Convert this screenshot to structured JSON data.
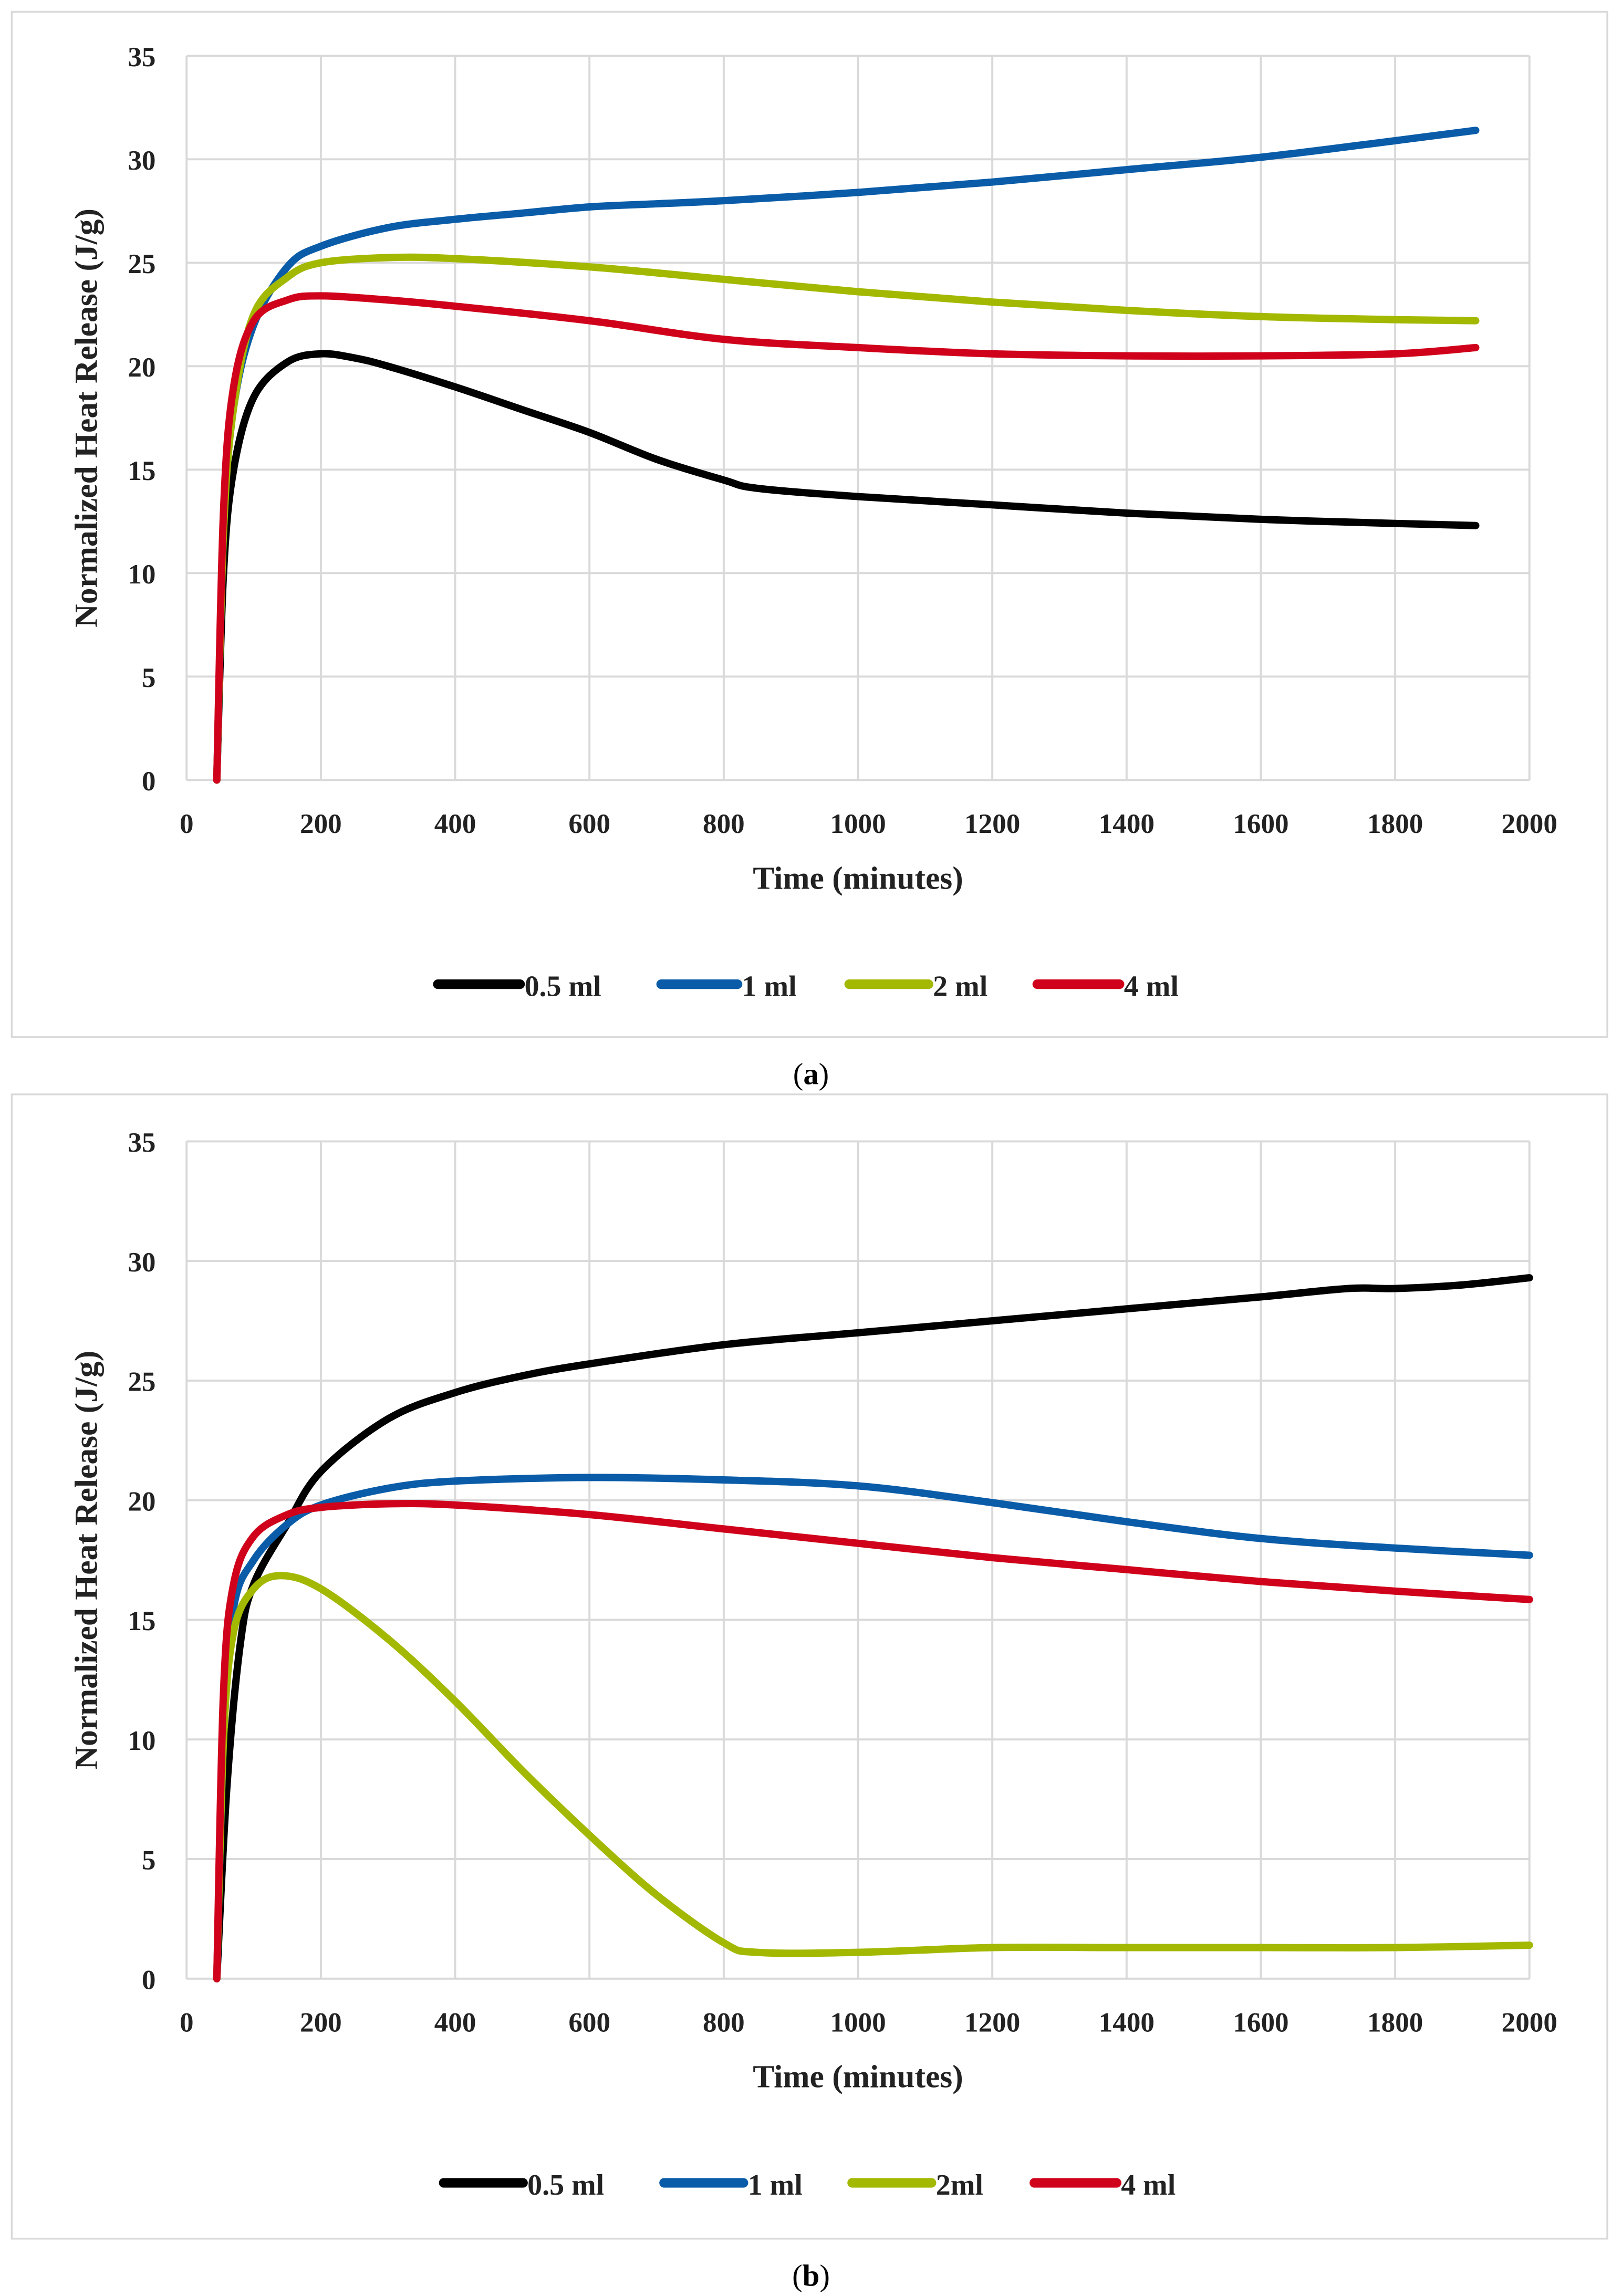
{
  "chart_data": [
    {
      "type": "line",
      "caption": "a",
      "xlabel": "Time (minutes)",
      "ylabel": "Normalized Heat Release (J/g)",
      "xlim": [
        0,
        2000
      ],
      "ylim": [
        0,
        35
      ],
      "xticks": [
        0,
        200,
        400,
        600,
        800,
        1000,
        1200,
        1400,
        1600,
        1800,
        2000
      ],
      "yticks": [
        0,
        5,
        10,
        15,
        20,
        25,
        30,
        35
      ],
      "grid": "vertical and horizontal",
      "legend_position": "bottom",
      "series": [
        {
          "name": "0.5 ml",
          "color": "#000000",
          "points": [
            [
              45,
              0
            ],
            [
              55,
              10
            ],
            [
              70,
              15
            ],
            [
              100,
              18.5
            ],
            [
              150,
              20.2
            ],
            [
              200,
              20.6
            ],
            [
              250,
              20.4
            ],
            [
              300,
              20
            ],
            [
              400,
              19
            ],
            [
              500,
              17.9
            ],
            [
              600,
              16.8
            ],
            [
              700,
              15.5
            ],
            [
              800,
              14.5
            ],
            [
              850,
              14.1
            ],
            [
              1000,
              13.7
            ],
            [
              1200,
              13.3
            ],
            [
              1400,
              12.9
            ],
            [
              1600,
              12.6
            ],
            [
              1800,
              12.4
            ],
            [
              1920,
              12.3
            ]
          ]
        },
        {
          "name": "1 ml",
          "color": "#0a5ca8",
          "points": [
            [
              45,
              0
            ],
            [
              55,
              12
            ],
            [
              70,
              18
            ],
            [
              100,
              22
            ],
            [
              150,
              24.8
            ],
            [
              200,
              25.8
            ],
            [
              300,
              26.7
            ],
            [
              400,
              27.1
            ],
            [
              500,
              27.4
            ],
            [
              600,
              27.7
            ],
            [
              700,
              27.85
            ],
            [
              800,
              28
            ],
            [
              1000,
              28.4
            ],
            [
              1200,
              28.9
            ],
            [
              1400,
              29.5
            ],
            [
              1600,
              30.1
            ],
            [
              1800,
              30.9
            ],
            [
              1920,
              31.4
            ]
          ]
        },
        {
          "name": "2 ml",
          "color": "#a3b800",
          "points": [
            [
              45,
              0
            ],
            [
              55,
              12
            ],
            [
              70,
              18
            ],
            [
              100,
              22.5
            ],
            [
              150,
              24.3
            ],
            [
              200,
              25
            ],
            [
              300,
              25.25
            ],
            [
              400,
              25.2
            ],
            [
              600,
              24.8
            ],
            [
              800,
              24.2
            ],
            [
              1000,
              23.6
            ],
            [
              1200,
              23.1
            ],
            [
              1400,
              22.7
            ],
            [
              1600,
              22.4
            ],
            [
              1800,
              22.25
            ],
            [
              1920,
              22.2
            ]
          ]
        },
        {
          "name": "4 ml",
          "color": "#d0021b",
          "points": [
            [
              45,
              0
            ],
            [
              55,
              13
            ],
            [
              70,
              19
            ],
            [
              100,
              22.2
            ],
            [
              150,
              23.2
            ],
            [
              200,
              23.4
            ],
            [
              300,
              23.2
            ],
            [
              400,
              22.9
            ],
            [
              600,
              22.2
            ],
            [
              800,
              21.3
            ],
            [
              1000,
              20.9
            ],
            [
              1200,
              20.6
            ],
            [
              1400,
              20.5
            ],
            [
              1600,
              20.5
            ],
            [
              1800,
              20.6
            ],
            [
              1920,
              20.9
            ]
          ]
        }
      ]
    },
    {
      "type": "line",
      "caption": "b",
      "xlabel": "Time (minutes)",
      "ylabel": "Normalized Heat Release (J/g)",
      "xlim": [
        0,
        2000
      ],
      "ylim": [
        0,
        35
      ],
      "xticks": [
        0,
        200,
        400,
        600,
        800,
        1000,
        1200,
        1400,
        1600,
        1800,
        2000
      ],
      "yticks": [
        0,
        5,
        10,
        15,
        20,
        25,
        30,
        35
      ],
      "grid": "vertical and horizontal",
      "legend_position": "bottom",
      "series": [
        {
          "name": "0.5 ml",
          "color": "#000000",
          "points": [
            [
              45,
              0
            ],
            [
              60,
              8
            ],
            [
              80,
              14
            ],
            [
              100,
              16.5
            ],
            [
              150,
              19
            ],
            [
              200,
              21.2
            ],
            [
              300,
              23.4
            ],
            [
              400,
              24.5
            ],
            [
              500,
              25.2
            ],
            [
              600,
              25.7
            ],
            [
              800,
              26.5
            ],
            [
              1000,
              27
            ],
            [
              1200,
              27.5
            ],
            [
              1400,
              28
            ],
            [
              1600,
              28.5
            ],
            [
              1730,
              28.85
            ],
            [
              1800,
              28.85
            ],
            [
              1900,
              29
            ],
            [
              2000,
              29.3
            ]
          ]
        },
        {
          "name": "1 ml",
          "color": "#0a5ca8",
          "points": [
            [
              45,
              0
            ],
            [
              55,
              10
            ],
            [
              70,
              15.5
            ],
            [
              100,
              17.5
            ],
            [
              150,
              19
            ],
            [
              200,
              19.8
            ],
            [
              300,
              20.5
            ],
            [
              400,
              20.8
            ],
            [
              600,
              20.95
            ],
            [
              800,
              20.85
            ],
            [
              1000,
              20.6
            ],
            [
              1200,
              19.9
            ],
            [
              1400,
              19.1
            ],
            [
              1600,
              18.4
            ],
            [
              1800,
              18
            ],
            [
              2000,
              17.7
            ]
          ]
        },
        {
          "name": "2ml",
          "color": "#a3b800",
          "points": [
            [
              45,
              0
            ],
            [
              55,
              10
            ],
            [
              70,
              14.5
            ],
            [
              100,
              16.3
            ],
            [
              140,
              16.85
            ],
            [
              200,
              16.3
            ],
            [
              300,
              14.2
            ],
            [
              400,
              11.6
            ],
            [
              500,
              8.7
            ],
            [
              600,
              6
            ],
            [
              700,
              3.5
            ],
            [
              800,
              1.5
            ],
            [
              850,
              1.1
            ],
            [
              1000,
              1.1
            ],
            [
              1200,
              1.3
            ],
            [
              1400,
              1.3
            ],
            [
              1600,
              1.3
            ],
            [
              1800,
              1.3
            ],
            [
              2000,
              1.4
            ]
          ]
        },
        {
          "name": "4 ml",
          "color": "#d0021b",
          "points": [
            [
              45,
              0
            ],
            [
              55,
              12
            ],
            [
              70,
              16.5
            ],
            [
              100,
              18.5
            ],
            [
              150,
              19.4
            ],
            [
              200,
              19.7
            ],
            [
              300,
              19.85
            ],
            [
              400,
              19.8
            ],
            [
              600,
              19.4
            ],
            [
              800,
              18.8
            ],
            [
              1000,
              18.2
            ],
            [
              1200,
              17.6
            ],
            [
              1400,
              17.1
            ],
            [
              1600,
              16.6
            ],
            [
              1800,
              16.2
            ],
            [
              2000,
              15.85
            ]
          ]
        }
      ]
    }
  ]
}
